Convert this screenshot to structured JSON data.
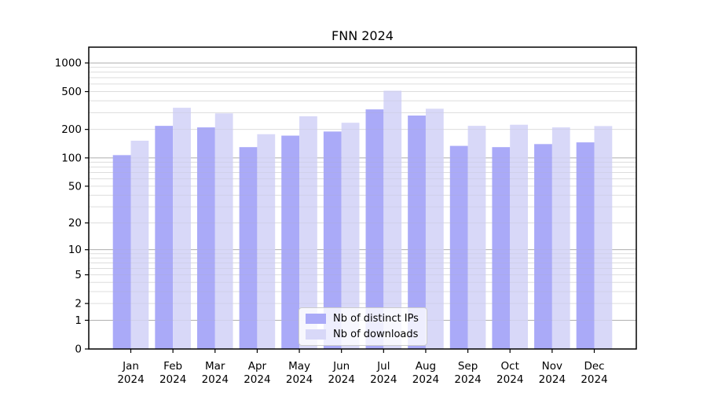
{
  "chart_data": {
    "type": "bar",
    "title": "FNN 2024",
    "xlabel": "",
    "ylabel": "",
    "categories": [
      "Jan",
      "Feb",
      "Mar",
      "Apr",
      "May",
      "Jun",
      "Jul",
      "Aug",
      "Sep",
      "Oct",
      "Nov",
      "Dec"
    ],
    "x_year_label": "2024",
    "series": [
      {
        "name": "Nb of distinct IPs",
        "color": "#aaaaf8",
        "values": [
          107,
          218,
          210,
          130,
          172,
          190,
          325,
          280,
          134,
          130,
          140,
          146
        ]
      },
      {
        "name": "Nb of downloads",
        "color": "#d8d8f8",
        "values": [
          152,
          338,
          295,
          178,
          275,
          235,
          510,
          330,
          218,
          224,
          210,
          217
        ]
      }
    ],
    "y_scale": "log1p",
    "ylim": [
      0,
      1464
    ],
    "y_tick_labels": [
      0,
      1,
      2,
      5,
      10,
      20,
      50,
      100,
      200,
      500,
      1000
    ],
    "grid": {
      "on": true,
      "major_values": [
        1,
        10,
        100,
        1000
      ],
      "minor_values": [
        2,
        3,
        4,
        5,
        6,
        7,
        8,
        9,
        20,
        30,
        40,
        50,
        60,
        70,
        80,
        90,
        200,
        300,
        400,
        500,
        600,
        700,
        800,
        900
      ],
      "major_color": "#b0b0b0",
      "minor_color": "#e8e8e8"
    },
    "legend_position": "lower-center",
    "axis_color": "#000000"
  }
}
